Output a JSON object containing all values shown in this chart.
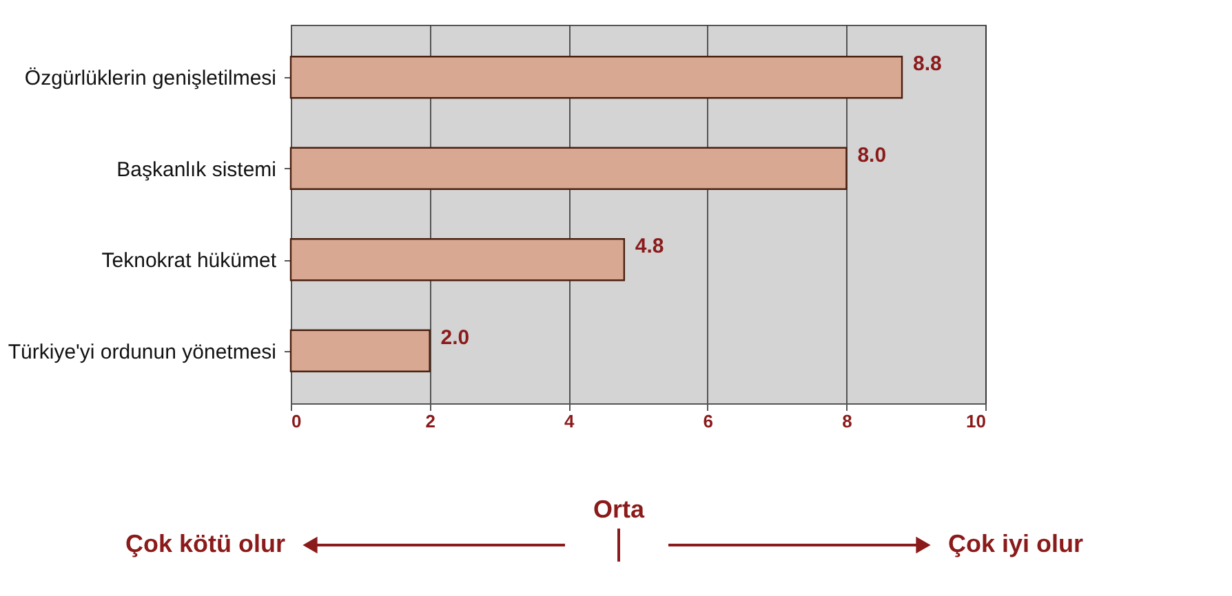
{
  "chart_data": {
    "type": "bar",
    "orientation": "horizontal",
    "categories": [
      "Özgürlüklerin genişletilmesi",
      "Başkanlık sistemi",
      "Teknokrat hükümet",
      "Türkiye'yi ordunun yönetmesi"
    ],
    "values": [
      8.8,
      8.0,
      4.8,
      2.0
    ],
    "color": "#d9a892",
    "xlim": [
      0,
      10
    ],
    "xticks": [
      0,
      2,
      4,
      6,
      8,
      10
    ],
    "grid": "x",
    "value_labels": [
      "8.8",
      "8.0",
      "4.8",
      "2.0"
    ],
    "annotations": [
      "Orta",
      "Çok kötü olur",
      "Çok iyi olur"
    ]
  }
}
